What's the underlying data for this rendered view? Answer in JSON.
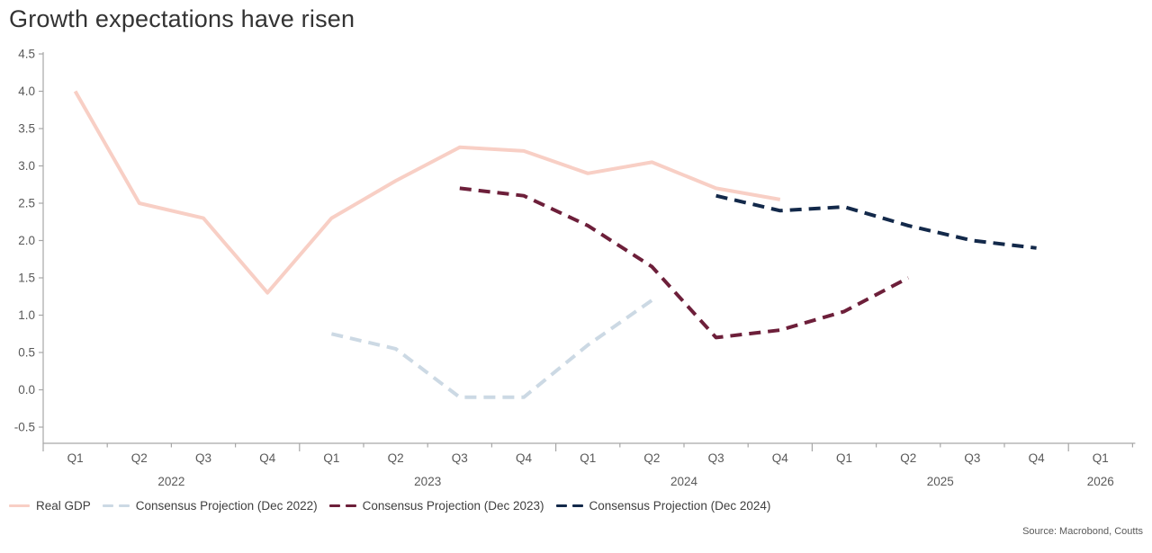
{
  "title": "Growth expectations have risen",
  "source": "Source: Macrobond, Coutts",
  "chart_data": {
    "type": "line",
    "title": "Growth expectations have risen",
    "categories": [
      "Q1 2022",
      "Q2 2022",
      "Q3 2022",
      "Q4 2022",
      "Q1 2023",
      "Q2 2023",
      "Q3 2023",
      "Q4 2023",
      "Q1 2024",
      "Q2 2024",
      "Q3 2024",
      "Q4 2024",
      "Q1 2025",
      "Q2 2025",
      "Q3 2025",
      "Q4 2025",
      "Q1 2026"
    ],
    "quarter_labels": [
      "Q1",
      "Q2",
      "Q3",
      "Q4",
      "Q1",
      "Q2",
      "Q3",
      "Q4",
      "Q1",
      "Q2",
      "Q3",
      "Q4",
      "Q1",
      "Q2",
      "Q3",
      "Q4",
      "Q1"
    ],
    "year_labels": [
      "2022",
      "2023",
      "2024",
      "2025",
      "2026"
    ],
    "ylim": [
      -0.5,
      4.5
    ],
    "ytick_step": 0.5,
    "grid": false,
    "legend_position": "bottom-left",
    "axis_color": "#a6a6a6",
    "tick_label_color": "#595959",
    "series": [
      {
        "name": "Real GDP",
        "style": "solid",
        "color": "#f8cfc5",
        "start_index": 0,
        "values": [
          4.0,
          2.5,
          2.3,
          1.3,
          2.3,
          2.8,
          3.25,
          3.2,
          2.9,
          3.05,
          2.7,
          2.55
        ]
      },
      {
        "name": "Consensus Projection (Dec 2022)",
        "style": "dashed",
        "color": "#ccd9e4",
        "start_index": 4,
        "values": [
          0.75,
          0.55,
          -0.1,
          -0.1,
          0.6,
          1.2
        ]
      },
      {
        "name": "Consensus Projection (Dec 2023)",
        "style": "dashed",
        "color": "#6d1f3a",
        "start_index": 6,
        "values": [
          2.7,
          2.6,
          2.2,
          1.65,
          0.7,
          0.8,
          1.05,
          1.5
        ]
      },
      {
        "name": "Consensus Projection (Dec 2024)",
        "style": "dashed",
        "color": "#13294a",
        "start_index": 10,
        "values": [
          2.6,
          2.4,
          2.45,
          2.2,
          2.0,
          1.9
        ]
      }
    ]
  }
}
